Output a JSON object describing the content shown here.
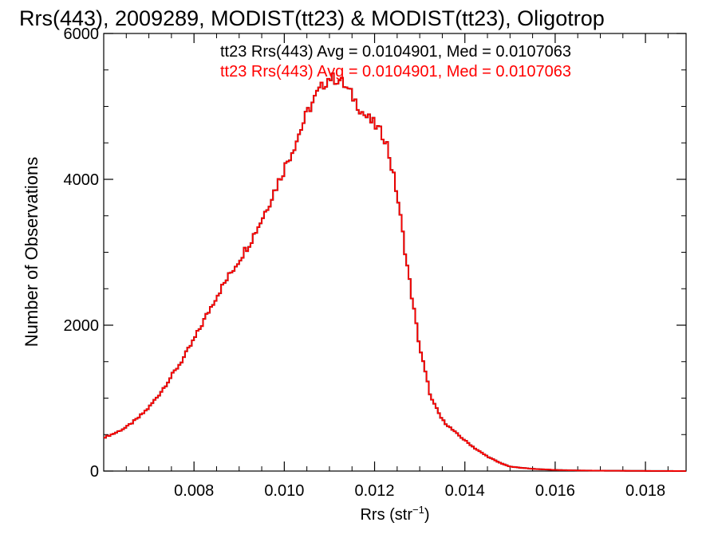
{
  "chart_data": {
    "type": "line",
    "title": "Rrs(443), 2009289, MODIST(tt23) & MODIST(tt23), Oligotrop",
    "xlabel": "Rrs (str",
    "xlabel_sup": "−1",
    "xlabel_close": ")",
    "ylabel": "Number of Observations",
    "xlim": [
      0.006,
      0.0189
    ],
    "ylim": [
      0,
      6000
    ],
    "xticks": [
      0.008,
      0.01,
      0.012,
      0.014,
      0.016,
      0.018
    ],
    "xtick_labels": [
      "0.008",
      "0.010",
      "0.012",
      "0.014",
      "0.016",
      "0.018"
    ],
    "yticks": [
      0,
      2000,
      4000,
      6000
    ],
    "ytick_labels": [
      "0",
      "2000",
      "4000",
      "6000"
    ],
    "grid": false,
    "colors": {
      "axis": "#000000",
      "series": "#ff0000"
    },
    "legend_position": "top-right",
    "series": [
      {
        "name": "tt23 Rrs(443) Avg = 0.0104901, Med = 0.0107063",
        "color": "#000000",
        "hidden_under_red": true,
        "x": [
          0.006,
          0.00625,
          0.0065,
          0.00675,
          0.007,
          0.00725,
          0.0075,
          0.00775,
          0.008,
          0.00825,
          0.0085,
          0.00875,
          0.009,
          0.00925,
          0.0095,
          0.00975,
          0.01,
          0.01025,
          0.0105,
          0.01075,
          0.011,
          0.01125,
          0.0115,
          0.01175,
          0.012,
          0.01225,
          0.0125,
          0.01275,
          0.013,
          0.01325,
          0.0135,
          0.01375,
          0.014,
          0.01425,
          0.0145,
          0.01475,
          0.015,
          0.0155,
          0.016,
          0.0165,
          0.017,
          0.018,
          0.0189
        ],
        "y": [
          460,
          520,
          600,
          720,
          870,
          1070,
          1300,
          1530,
          1800,
          2100,
          2400,
          2650,
          2900,
          3150,
          3450,
          3800,
          4150,
          4500,
          4900,
          5200,
          5400,
          5350,
          5150,
          4900,
          4750,
          4550,
          3800,
          2700,
          1700,
          1000,
          700,
          550,
          420,
          300,
          200,
          120,
          60,
          30,
          15,
          8,
          5,
          2,
          0
        ]
      },
      {
        "name": "tt23 Rrs(443) Avg = 0.0104901, Med = 0.0107063",
        "color": "#ff0000",
        "x": [
          0.006,
          0.00625,
          0.0065,
          0.00675,
          0.007,
          0.00725,
          0.0075,
          0.00775,
          0.008,
          0.00825,
          0.0085,
          0.00875,
          0.009,
          0.00925,
          0.0095,
          0.00975,
          0.01,
          0.01025,
          0.0105,
          0.01075,
          0.011,
          0.01125,
          0.0115,
          0.01175,
          0.012,
          0.01225,
          0.0125,
          0.01275,
          0.013,
          0.01325,
          0.0135,
          0.01375,
          0.014,
          0.01425,
          0.0145,
          0.01475,
          0.015,
          0.0155,
          0.016,
          0.0165,
          0.017,
          0.018,
          0.0189
        ],
        "y": [
          460,
          520,
          600,
          720,
          870,
          1070,
          1300,
          1530,
          1800,
          2100,
          2400,
          2650,
          2900,
          3150,
          3450,
          3800,
          4150,
          4500,
          4900,
          5200,
          5400,
          5350,
          5150,
          4900,
          4750,
          4550,
          3800,
          2700,
          1700,
          1000,
          700,
          550,
          420,
          300,
          200,
          120,
          60,
          30,
          15,
          8,
          5,
          2,
          0
        ]
      }
    ]
  }
}
